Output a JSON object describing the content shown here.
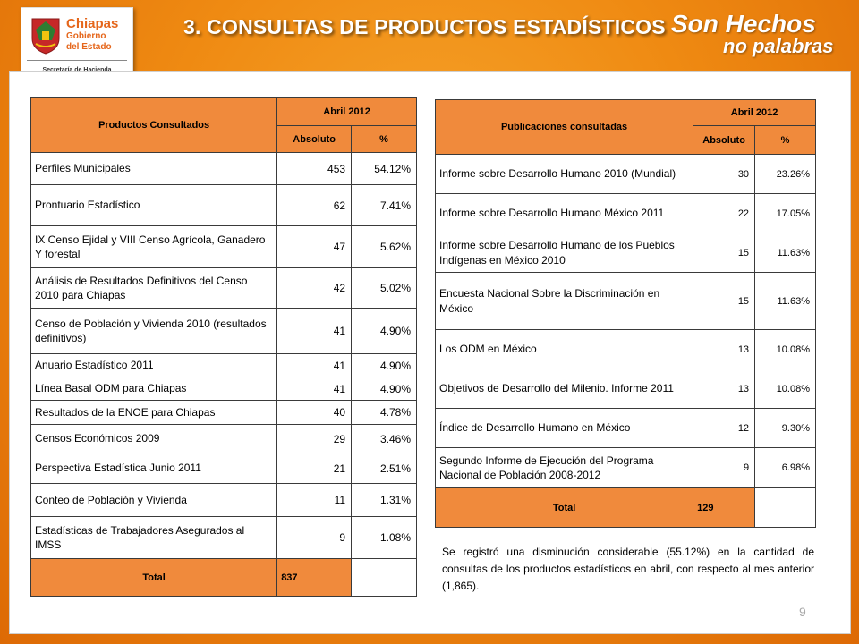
{
  "header": {
    "title": "3. CONSULTAS DE PRODUCTOS ESTADÍSTICOS",
    "logo": {
      "name": "Chiapas",
      "line2": "Gobierno",
      "line3": "del Estado",
      "department": "Secretaría de Hacienda"
    },
    "slogan_line1": "Son Hechos",
    "slogan_line2": "no palabras"
  },
  "colors": {
    "header_cell": "#f08a3c",
    "background": "#ef8a12"
  },
  "table_productos": {
    "header_col": "Productos Consultados",
    "period": "Abril 2012",
    "col_abs": "Absoluto",
    "col_pct": "%",
    "rows": [
      {
        "name": "Perfiles Municipales",
        "abs": "453",
        "pct": "54.12%"
      },
      {
        "name": "Prontuario Estadístico",
        "abs": "62",
        "pct": "7.41%"
      },
      {
        "name": "IX Censo Ejidal y VIII Censo Agrícola, Ganadero Y forestal",
        "abs": "47",
        "pct": "5.62%"
      },
      {
        "name": "Análisis de Resultados Definitivos del Censo 2010 para Chiapas",
        "abs": "42",
        "pct": "5.02%"
      },
      {
        "name": "Censo de Población y Vivienda 2010 (resultados definitivos)",
        "abs": "41",
        "pct": "4.90%"
      },
      {
        "name": "Anuario Estadístico 2011",
        "abs": "41",
        "pct": "4.90%"
      },
      {
        "name": "Línea Basal ODM para Chiapas",
        "abs": "41",
        "pct": "4.90%"
      },
      {
        "name": "Resultados de la ENOE para Chiapas",
        "abs": "40",
        "pct": "4.78%"
      },
      {
        "name": "Censos Económicos 2009",
        "abs": "29",
        "pct": "3.46%"
      },
      {
        "name": "Perspectiva Estadística Junio 2011",
        "abs": "21",
        "pct": "2.51%"
      },
      {
        "name": "Conteo de Población y Vivienda",
        "abs": "11",
        "pct": "1.31%"
      },
      {
        "name": "Estadísticas de Trabajadores Asegurados al IMSS",
        "abs": "9",
        "pct": "1.08%"
      }
    ],
    "total_label": "Total",
    "total_value": "837"
  },
  "table_publicaciones": {
    "header_col": "Publicaciones consultadas",
    "period": "Abril  2012",
    "col_abs": "Absoluto",
    "col_pct": "%",
    "rows": [
      {
        "name": "Informe sobre Desarrollo Humano 2010 (Mundial)",
        "abs": "30",
        "pct": "23.26%"
      },
      {
        "name": "Informe sobre Desarrollo Humano México 2011",
        "abs": "22",
        "pct": "17.05%"
      },
      {
        "name": "Informe sobre Desarrollo Humano de los Pueblos Indígenas en México 2010",
        "abs": "15",
        "pct": "11.63%"
      },
      {
        "name": "Encuesta Nacional Sobre la Discriminación en México",
        "abs": "15",
        "pct": "11.63%"
      },
      {
        "name": "Los ODM en México",
        "abs": "13",
        "pct": "10.08%"
      },
      {
        "name": "Objetivos de Desarrollo del Milenio. Informe 2011",
        "abs": "13",
        "pct": "10.08%"
      },
      {
        "name": "Índice de Desarrollo Humano en México",
        "abs": "12",
        "pct": "9.30%"
      },
      {
        "name": "Segundo Informe de Ejecución del Programa Nacional de Población 2008-2012",
        "abs": "9",
        "pct": "6.98%"
      }
    ],
    "total_label": "Total",
    "total_value": "129"
  },
  "note": "Se registró una disminución considerable (55.12%) en la cantidad de consultas de los productos estadísticos en abril, con respecto al mes anterior (1,865).",
  "page_number": "9"
}
